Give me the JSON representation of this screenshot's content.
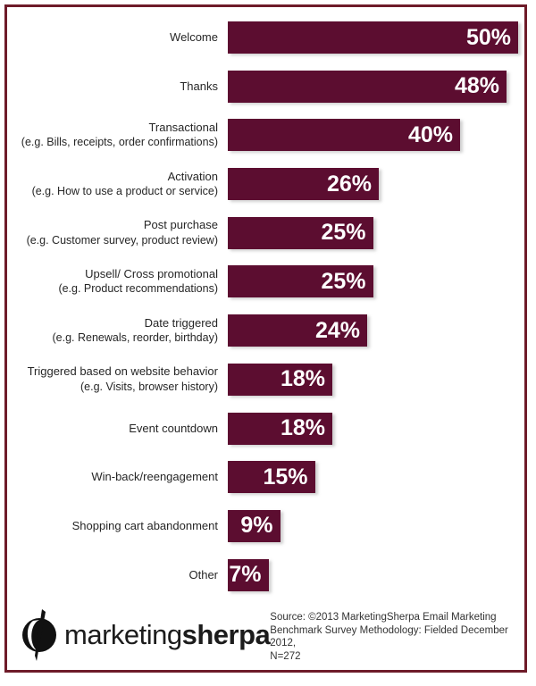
{
  "colors": {
    "bar": "#5c0d30",
    "frame_border": "#6e1b29",
    "label_text": "#262626",
    "value_text": "#ffffff",
    "source_text": "#333333",
    "logo_text": "#1c1c1c"
  },
  "chart_data": {
    "type": "bar",
    "orientation": "horizontal",
    "title": "",
    "xlabel": "",
    "ylabel": "",
    "xlim": [
      0,
      52
    ],
    "grid": false,
    "legend": false,
    "unit": "%",
    "value_labels_inside_bars": true,
    "categories": [
      "Welcome",
      "Thanks",
      "Transactional",
      "Activation",
      "Post purchase",
      "Upsell/ Cross promotional",
      "Date triggered",
      "Triggered based on website behavior",
      "Event countdown",
      "Win-back/reengagement",
      "Shopping cart abandonment",
      "Other"
    ],
    "sublabels": [
      "",
      "",
      "(e.g. Bills, receipts, order confirmations)",
      "(e.g. How to use a product or service)",
      "(e.g.  Customer survey, product review)",
      "(e.g.  Product recommendations)",
      "(e.g.  Renewals, reorder, birthday)",
      "(e.g.  Visits, browser history)",
      "",
      "",
      "",
      ""
    ],
    "values": [
      50,
      48,
      40,
      26,
      25,
      25,
      24,
      18,
      18,
      15,
      9,
      7
    ]
  },
  "footer": {
    "logo": {
      "brand_regular": "marketing",
      "brand_bold": "sherpa"
    },
    "source_lines": [
      "Source: ©2013 MarketingSherpa Email Marketing",
      "Benchmark Survey  Methodology:  Fielded December 2012,",
      "N=272"
    ]
  }
}
